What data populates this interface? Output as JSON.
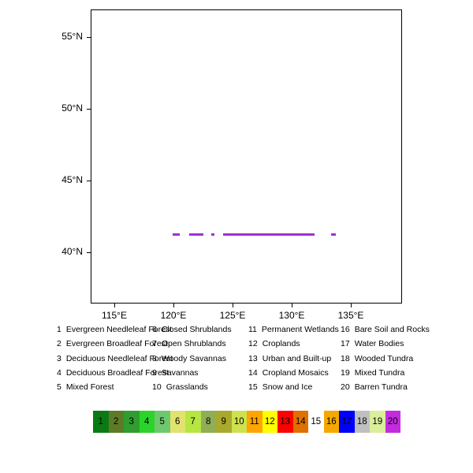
{
  "figure": {
    "background": "#ffffff"
  },
  "chart_data": {
    "type": "scatter",
    "title": "",
    "xlabel": "",
    "ylabel": "",
    "x_axis": {
      "range": [
        113.0,
        139.33
      ],
      "ticks": [
        {
          "value": 115,
          "label": "115°E"
        },
        {
          "value": 120,
          "label": "120°E"
        },
        {
          "value": 125,
          "label": "125°E"
        },
        {
          "value": 130,
          "label": "130°E"
        },
        {
          "value": 135,
          "label": "135°E"
        }
      ]
    },
    "y_axis": {
      "range": [
        36.43,
        56.93
      ],
      "ticks": [
        {
          "value": 55,
          "label": "55°N"
        },
        {
          "value": 50,
          "label": "50°N"
        },
        {
          "value": 45,
          "label": "45°N"
        },
        {
          "value": 40,
          "label": "40°N"
        }
      ]
    },
    "segment_color": "#a02fd6",
    "segments": [
      {
        "lat": 41.25,
        "lon_start": 119.9,
        "lon_end": 120.5
      },
      {
        "lat": 41.25,
        "lon_start": 121.3,
        "lon_end": 122.5
      },
      {
        "lat": 41.25,
        "lon_start": 123.2,
        "lon_end": 123.45
      },
      {
        "lat": 41.25,
        "lon_start": 124.2,
        "lon_end": 131.9
      },
      {
        "lat": 41.25,
        "lon_start": 133.3,
        "lon_end": 133.75
      }
    ]
  },
  "legend": {
    "columns": 4,
    "rows": 5,
    "items": [
      {
        "num": "1",
        "label": "Evergreen Needleleaf Forest"
      },
      {
        "num": "2",
        "label": "Evergreen Broadleaf Forest"
      },
      {
        "num": "3",
        "label": "Deciduous Needleleaf Forest"
      },
      {
        "num": "4",
        "label": "Deciduous Broadleaf Forest"
      },
      {
        "num": "5",
        "label": "Mixed Forest"
      },
      {
        "num": "6",
        "label": "Closed Shrublands"
      },
      {
        "num": "7",
        "label": "Open Shrublands"
      },
      {
        "num": "8",
        "label": "Woody Savannas"
      },
      {
        "num": "9",
        "label": "Savannas"
      },
      {
        "num": "10",
        "label": "Grasslands"
      },
      {
        "num": "11",
        "label": "Permanent Wetlands"
      },
      {
        "num": "12",
        "label": "Croplands"
      },
      {
        "num": "13",
        "label": "Urban and Built-up"
      },
      {
        "num": "14",
        "label": "Cropland Mosaics"
      },
      {
        "num": "15",
        "label": "Snow and Ice"
      },
      {
        "num": "16",
        "label": "Bare Soil and Rocks"
      },
      {
        "num": "17",
        "label": "Water Bodies"
      },
      {
        "num": "18",
        "label": "Wooded Tundra"
      },
      {
        "num": "19",
        "label": "Mixed Tundra"
      },
      {
        "num": "20",
        "label": "Barren Tundra"
      }
    ]
  },
  "colorbar": {
    "cells": [
      {
        "num": "1",
        "color": "#0c7a14"
      },
      {
        "num": "2",
        "color": "#5d7a28"
      },
      {
        "num": "3",
        "color": "#2f9e2f"
      },
      {
        "num": "4",
        "color": "#2bd42b"
      },
      {
        "num": "5",
        "color": "#6ec86e"
      },
      {
        "num": "6",
        "color": "#e2e26e"
      },
      {
        "num": "7",
        "color": "#b5e642"
      },
      {
        "num": "8",
        "color": "#8fae56"
      },
      {
        "num": "9",
        "color": "#a9a92e"
      },
      {
        "num": "10",
        "color": "#cde24e"
      },
      {
        "num": "11",
        "color": "#ffa500"
      },
      {
        "num": "12",
        "color": "#ffff00"
      },
      {
        "num": "13",
        "color": "#ff0000"
      },
      {
        "num": "14",
        "color": "#e07000"
      },
      {
        "num": "15",
        "color": "#ffffff"
      },
      {
        "num": "16",
        "color": "#f6a800"
      },
      {
        "num": "17",
        "color": "#0000ff"
      },
      {
        "num": "18",
        "color": "#c0c0c0"
      },
      {
        "num": "19",
        "color": "#d9ef9a"
      },
      {
        "num": "20",
        "color": "#c42be0"
      }
    ]
  }
}
